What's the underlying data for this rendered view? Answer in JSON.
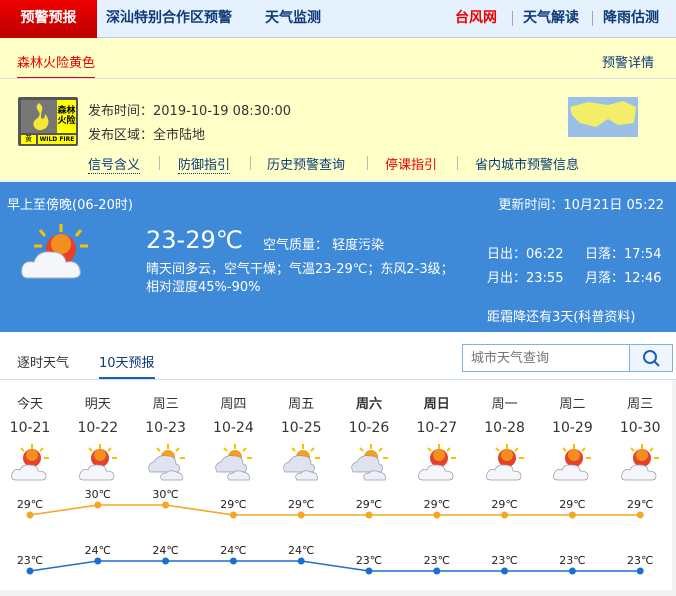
{
  "nav": {
    "home": "预警预报",
    "items": [
      "深汕特别合作区预警",
      "天气监测"
    ],
    "right": [
      "台风网",
      "天气解读",
      "降雨估测"
    ],
    "right_colors": [
      "#ee0000",
      "#0c3a7a",
      "#0c3a7a"
    ]
  },
  "warning": {
    "tab": "森林火险黄色",
    "detail": "预警详情",
    "badge": {
      "name": "森林火险",
      "level": "黄",
      "en": "WILD FIRE"
    },
    "time": "发布时间：2019-10-19 08:30:00",
    "area": "发布区域：全市陆地",
    "links": [
      "信号含义",
      "防御指引",
      "历史预警查询",
      "停课指引",
      "省内城市预警信息"
    ]
  },
  "current": {
    "period": "早上至傍晚(06-20时)",
    "update": "更新时间：10月21日 05:22",
    "temp": "23-29℃",
    "aqi": "空气质量： 轻度污染",
    "desc1": "晴天间多云，空气干燥；气温23-29℃；东风2-3级；",
    "desc2": "相对湿度45%-90%",
    "sunrise": "日出：06:22",
    "sunset": "日落：17:54",
    "moonrise": "月出：23:55",
    "moonset": "月落：12:46",
    "frost": "距霜降还有3天(科普资料)"
  },
  "tabs": [
    "逐时天气",
    "10天预报"
  ],
  "search": {
    "placeholder": "城市天气查询"
  },
  "chart_data": {
    "type": "line",
    "categories": [
      "10-21",
      "10-22",
      "10-23",
      "10-24",
      "10-25",
      "10-26",
      "10-27",
      "10-28",
      "10-29",
      "10-30"
    ],
    "weekdays": [
      "今天",
      "明天",
      "周三",
      "周四",
      "周五",
      "周六",
      "周日",
      "周一",
      "周二",
      "周三"
    ],
    "bold_weekdays": [
      5,
      6
    ],
    "icons": [
      "partly-cloudy",
      "partly-cloudy",
      "cloudy",
      "cloudy",
      "cloudy",
      "cloudy",
      "partly-cloudy",
      "partly-cloudy",
      "partly-cloudy",
      "partly-cloudy"
    ],
    "unit": "℃",
    "series": [
      {
        "values": [
          29,
          30,
          30,
          29,
          29,
          29,
          29,
          29,
          29,
          29
        ],
        "color": "#f5a623"
      },
      {
        "values": [
          23,
          24,
          24,
          24,
          24,
          23,
          23,
          23,
          23,
          23
        ],
        "color": "#1a6fd1"
      }
    ]
  }
}
